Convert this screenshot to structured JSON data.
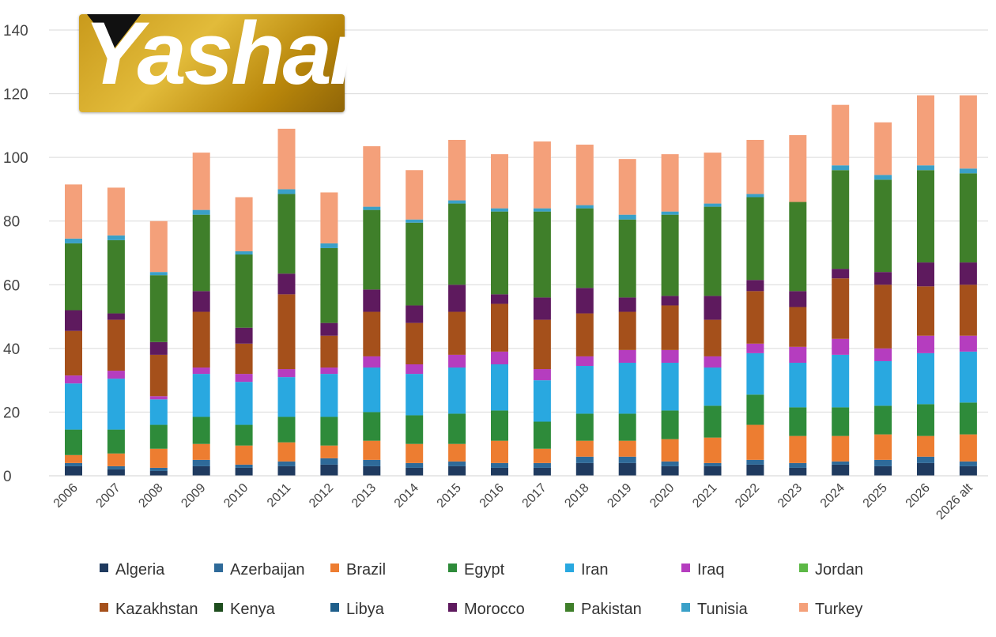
{
  "logo": {
    "text": "Yashar"
  },
  "chart_data": {
    "type": "bar",
    "stacked": true,
    "title": "",
    "xlabel": "",
    "ylabel": "",
    "ylim": [
      0,
      140
    ],
    "yticks": [
      0,
      20,
      40,
      60,
      80,
      100,
      120,
      140
    ],
    "grid": true,
    "legend_position": "bottom",
    "categories": [
      "2006",
      "2007",
      "2008",
      "2009",
      "2010",
      "2011",
      "2012",
      "2013",
      "2014",
      "2015",
      "2016",
      "2017",
      "2018",
      "2019",
      "2020",
      "2021",
      "2022",
      "2023",
      "2024",
      "2025",
      "2026",
      "2026 alt"
    ],
    "series": [
      {
        "name": "Algeria",
        "color": "#1f3a5f",
        "values": [
          3,
          2,
          1.5,
          3,
          2.5,
          3,
          3.5,
          3,
          2.5,
          3,
          2.5,
          2.5,
          4,
          4,
          3,
          3,
          3.5,
          2.5,
          3.5,
          3,
          4,
          3
        ]
      },
      {
        "name": "Azerbaijan",
        "color": "#2e6a99",
        "values": [
          1,
          1,
          1,
          2,
          1,
          1.5,
          2,
          2,
          1.5,
          1.5,
          1.5,
          1.5,
          2,
          2,
          1.5,
          1,
          1.5,
          1.5,
          1,
          2,
          2,
          1.5
        ]
      },
      {
        "name": "Brazil",
        "color": "#ed7d31",
        "values": [
          2.5,
          4,
          6,
          5,
          6,
          6,
          4,
          6,
          6,
          5.5,
          7,
          4.5,
          5,
          5,
          7,
          8,
          11,
          8.5,
          8,
          8,
          6.5,
          8.5
        ]
      },
      {
        "name": "Egypt",
        "color": "#2e8b3a",
        "values": [
          8,
          7.5,
          7.5,
          8.5,
          6.5,
          8,
          9,
          9,
          9,
          9.5,
          9.5,
          8.5,
          8.5,
          8.5,
          9,
          10,
          9.5,
          9,
          9,
          9,
          10,
          10
        ]
      },
      {
        "name": "Iran",
        "color": "#29a8e0",
        "values": [
          14.5,
          16,
          8,
          13.5,
          13.5,
          12.5,
          13.5,
          14,
          13,
          14.5,
          14.5,
          13,
          15,
          16,
          15,
          12,
          13,
          14,
          16.5,
          14,
          16,
          16
        ]
      },
      {
        "name": "Iraq",
        "color": "#b53dbf",
        "values": [
          2.5,
          2.5,
          1,
          2,
          2.5,
          2.5,
          2,
          3.5,
          3,
          4,
          4,
          3.5,
          3,
          4,
          4,
          3.5,
          3,
          5,
          5,
          4,
          5.5,
          5
        ]
      },
      {
        "name": "Jordan",
        "color": "#5cb846",
        "values": [
          0,
          0,
          0,
          0,
          0,
          0,
          0,
          0,
          0,
          0,
          0,
          0,
          0,
          0,
          0,
          0,
          0,
          0,
          0,
          0,
          0,
          0
        ]
      },
      {
        "name": "Kazakhstan",
        "color": "#a5501b",
        "values": [
          14,
          16,
          13,
          17.5,
          9.5,
          23.5,
          10,
          14,
          13,
          13.5,
          15,
          15.5,
          13.5,
          12,
          14,
          11.5,
          16.5,
          12.5,
          19,
          20,
          15.5,
          16
        ]
      },
      {
        "name": "Kenya",
        "color": "#1e4d1e",
        "values": [
          0,
          0,
          0,
          0,
          0,
          0,
          0,
          0,
          0,
          0,
          0,
          0,
          0,
          0,
          0,
          0,
          0,
          0,
          0,
          0,
          0,
          0
        ]
      },
      {
        "name": "Libya",
        "color": "#1f5f8b",
        "values": [
          0,
          0,
          0,
          0,
          0,
          0,
          0,
          0,
          0,
          0,
          0,
          0,
          0,
          0,
          0,
          0,
          0,
          0,
          0,
          0,
          0,
          0
        ]
      },
      {
        "name": "Morocco",
        "color": "#5e1a5e",
        "values": [
          6.5,
          2,
          4,
          6.5,
          5,
          6.5,
          4,
          7,
          5.5,
          8.5,
          3,
          7,
          8,
          4.5,
          3,
          7.5,
          3.5,
          5,
          3,
          4,
          7.5,
          7
        ]
      },
      {
        "name": "Pakistan",
        "color": "#3f7f2a",
        "values": [
          21,
          23,
          21,
          24,
          23,
          25,
          23.5,
          25,
          26,
          25.5,
          26,
          27,
          25,
          24.5,
          25.5,
          28,
          26,
          28,
          31,
          29,
          29,
          28
        ]
      },
      {
        "name": "Tunisia",
        "color": "#3aa0c8",
        "values": [
          1.5,
          1.5,
          1,
          1.5,
          1,
          1.5,
          1.5,
          1,
          1,
          1,
          1,
          1,
          1,
          1.5,
          1,
          1,
          1,
          0,
          1.5,
          1.5,
          1.5,
          1.5
        ]
      },
      {
        "name": "Turkey",
        "color": "#f4a07a",
        "values": [
          17,
          15,
          16,
          18,
          17,
          19,
          16,
          19,
          15.5,
          19,
          17,
          21,
          19,
          17.5,
          18,
          16,
          17,
          21,
          19,
          16.5,
          22,
          23
        ]
      }
    ]
  }
}
